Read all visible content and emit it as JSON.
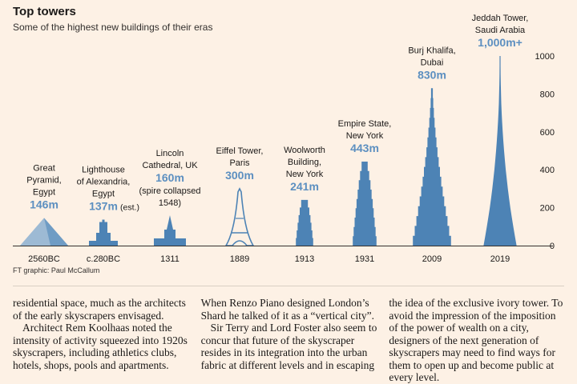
{
  "header": {
    "title": "Top towers",
    "subtitle": "Some of the highest new buildings of their eras"
  },
  "colors": {
    "tower_fill": "#4d83b5",
    "value_text": "#5c8fc0",
    "axis": "#33302e"
  },
  "chart_data": {
    "type": "bar",
    "title": "Top towers",
    "subtitle": "Some of the highest new buildings of their eras",
    "ylim": [
      0,
      1000
    ],
    "yticks": [
      0,
      200,
      400,
      600,
      800,
      1000
    ],
    "categories": [
      "2560BC",
      "c.280BC",
      "1311",
      "1889",
      "1913",
      "1931",
      "2009",
      "2019"
    ],
    "series": [
      {
        "values": [
          146,
          137,
          160,
          300,
          241,
          443,
          830,
          1000
        ]
      }
    ],
    "labels": [
      {
        "name": [
          "Great",
          "Pyramid,",
          "Egypt"
        ],
        "value": "146m",
        "extra": []
      },
      {
        "name": [
          "Lighthouse",
          "of Alexandria,",
          "Egypt"
        ],
        "value": "137m",
        "extra": [],
        "inline_note": "(est.)"
      },
      {
        "name": [
          "Lincoln",
          "Cathedral, UK"
        ],
        "value": "160m",
        "extra": [
          "(spire collapsed",
          "1548)"
        ]
      },
      {
        "name": [
          "Eiffel Tower,",
          "Paris"
        ],
        "value": "300m",
        "extra": []
      },
      {
        "name": [
          "Woolworth",
          "Building,",
          "New York"
        ],
        "value": "241m",
        "extra": []
      },
      {
        "name": [
          "Empire State,",
          "New York"
        ],
        "value": "443m",
        "extra": []
      },
      {
        "name": [
          "Burj Khalifa,",
          "Dubai"
        ],
        "value": "830m",
        "extra": []
      },
      {
        "name": [
          "Jeddah Tower,",
          "Saudi Arabia"
        ],
        "value": "1,000m+",
        "extra": []
      }
    ],
    "grid": false,
    "credit": "FT graphic: Paul McCallum"
  },
  "article": {
    "columns": [
      [
        "residential space, much as the architects of the early skyscrapers envisaged.",
        "Architect Rem Koolhaas noted the intensity of activity squeezed into 1920s skyscrapers, including athletics clubs, hotels, shops, pools and apartments."
      ],
      [
        "When Renzo Piano designed London’s Shard he talked of it as a “vertical city”.",
        "Sir Terry and Lord Foster also seem to concur that future of the skyscraper resides in its integration into the urban fabric at different levels and in escaping"
      ],
      [
        "the idea of the exclusive ivory tower. To avoid the impression of the imposition of the power of wealth on a city, designers of the next generation of skyscrapers may need to find ways for them to open up and become public at every level."
      ]
    ]
  }
}
